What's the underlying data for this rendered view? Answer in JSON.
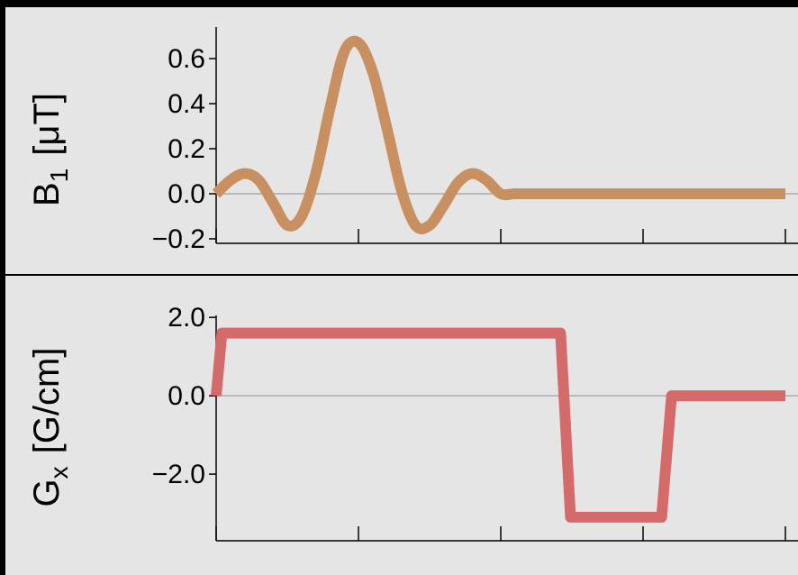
{
  "chart_data": [
    {
      "type": "line",
      "ylabel_main": "B",
      "ylabel_sub": "1",
      "ylabel_unit": "[μT]",
      "ylim": [
        -0.22,
        0.74
      ],
      "yticks": [
        -0.2,
        0.0,
        0.2,
        0.4,
        0.6
      ],
      "ytick_labels": [
        "−0.2",
        "0.0",
        "0.2",
        "0.4",
        "0.6"
      ],
      "xlim": [
        0,
        4.0
      ],
      "xticks": [
        0,
        1,
        2,
        3,
        4
      ],
      "grid": false,
      "zero_line": true,
      "line_color": "#c89060",
      "series": [
        {
          "x": [
            0,
            0.1,
            0.2,
            0.3,
            0.4,
            0.5,
            0.6,
            0.7,
            0.8,
            0.9,
            1.0,
            1.1,
            1.2,
            1.3,
            1.4,
            1.5,
            1.6,
            1.7,
            1.8,
            1.9,
            2.0,
            2.1,
            2.2,
            2.3,
            2.4,
            2.5,
            2.6,
            4.0
          ],
          "values": [
            0.0,
            0.06,
            0.09,
            0.06,
            -0.04,
            -0.14,
            -0.1,
            0.09,
            0.38,
            0.63,
            0.67,
            0.54,
            0.29,
            0.02,
            -0.14,
            -0.14,
            -0.05,
            0.05,
            0.09,
            0.06,
            0.0,
            0.0,
            0.0,
            0.0,
            0.0,
            0.0,
            0.0,
            0.0
          ]
        }
      ]
    },
    {
      "type": "line",
      "ylabel_main": "G",
      "ylabel_sub": "x",
      "ylabel_unit": "[G/cm]",
      "ylim": [
        -3.7,
        2.05
      ],
      "yticks": [
        -2.0,
        0.0,
        2.0
      ],
      "ytick_labels": [
        "−2.0",
        "0.0",
        "2.0"
      ],
      "xlim": [
        0,
        4.0
      ],
      "xticks": [
        0,
        1,
        2,
        3,
        4
      ],
      "grid": false,
      "zero_line": true,
      "line_color": "#d46a6a",
      "series": [
        {
          "x": [
            0,
            0.04,
            2.42,
            2.49,
            3.13,
            3.2,
            4.0
          ],
          "values": [
            0.0,
            1.6,
            1.6,
            -3.1,
            -3.1,
            0.0,
            0.0
          ]
        }
      ]
    }
  ]
}
